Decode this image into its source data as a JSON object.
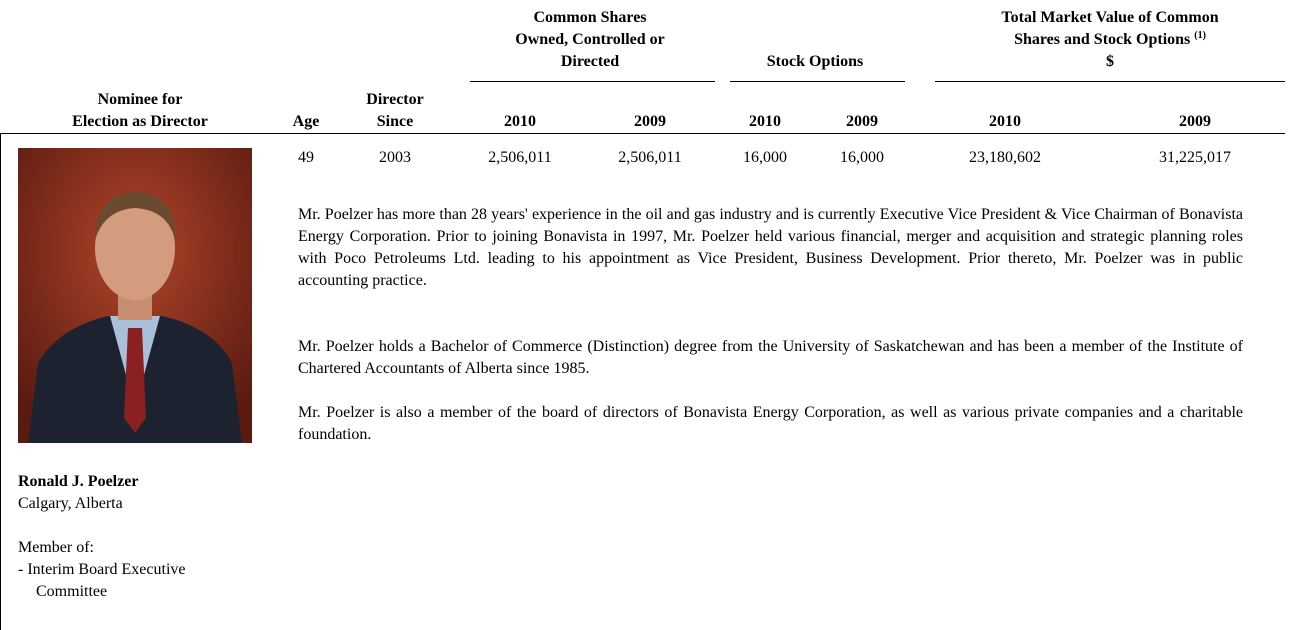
{
  "table": {
    "column_groups": [
      {
        "lines": [
          "Common Shares",
          "Owned, Controlled or",
          "Directed"
        ]
      },
      {
        "lines": [
          "Stock Options"
        ]
      },
      {
        "lines": [
          "Total Market Value of Common",
          "Shares and Stock Options",
          "$"
        ],
        "note_ref": "(1)"
      }
    ],
    "columns": [
      {
        "lines": [
          "Nominee for",
          "Election as Director"
        ]
      },
      {
        "lines": [
          "Age"
        ]
      },
      {
        "lines": [
          "Director",
          "Since"
        ]
      },
      {
        "lines": [
          "2010"
        ]
      },
      {
        "lines": [
          "2009"
        ]
      },
      {
        "lines": [
          "2010"
        ]
      },
      {
        "lines": [
          "2009"
        ]
      },
      {
        "lines": [
          "2010"
        ]
      },
      {
        "lines": [
          "2009"
        ]
      }
    ],
    "row": {
      "cells": [
        "49",
        "2003",
        "2,506,011",
        "2,506,011",
        "16,000",
        "16,000",
        "23,180,602",
        "31,225,017"
      ],
      "nominee": {
        "name": "Ronald J. Poelzer",
        "city": "Calgary, Alberta",
        "member_heading": "Member of:",
        "memberships": [
          "- Interim Board Executive",
          "Committee"
        ]
      },
      "bio": [
        "Mr. Poelzer has more than 28 years' experience in the oil and gas industry and is currently Executive Vice President & Vice Chairman of Bonavista Energy Corporation. Prior to joining Bonavista in 1997, Mr. Poelzer held various financial, merger and acquisition and strategic planning roles with Poco Petroleums Ltd. leading to his appointment as Vice President, Business Development. Prior thereto, Mr. Poelzer was in public accounting practice.",
        "Mr. Poelzer holds a Bachelor of Commerce (Distinction) degree from the University of Saskatchewan and has been a member of the Institute of Chartered Accountants of Alberta since 1985.",
        "Mr. Poelzer is also a member of the board of directors of Bonavista Energy Corporation, as well as various private companies and a charitable foundation."
      ]
    }
  }
}
